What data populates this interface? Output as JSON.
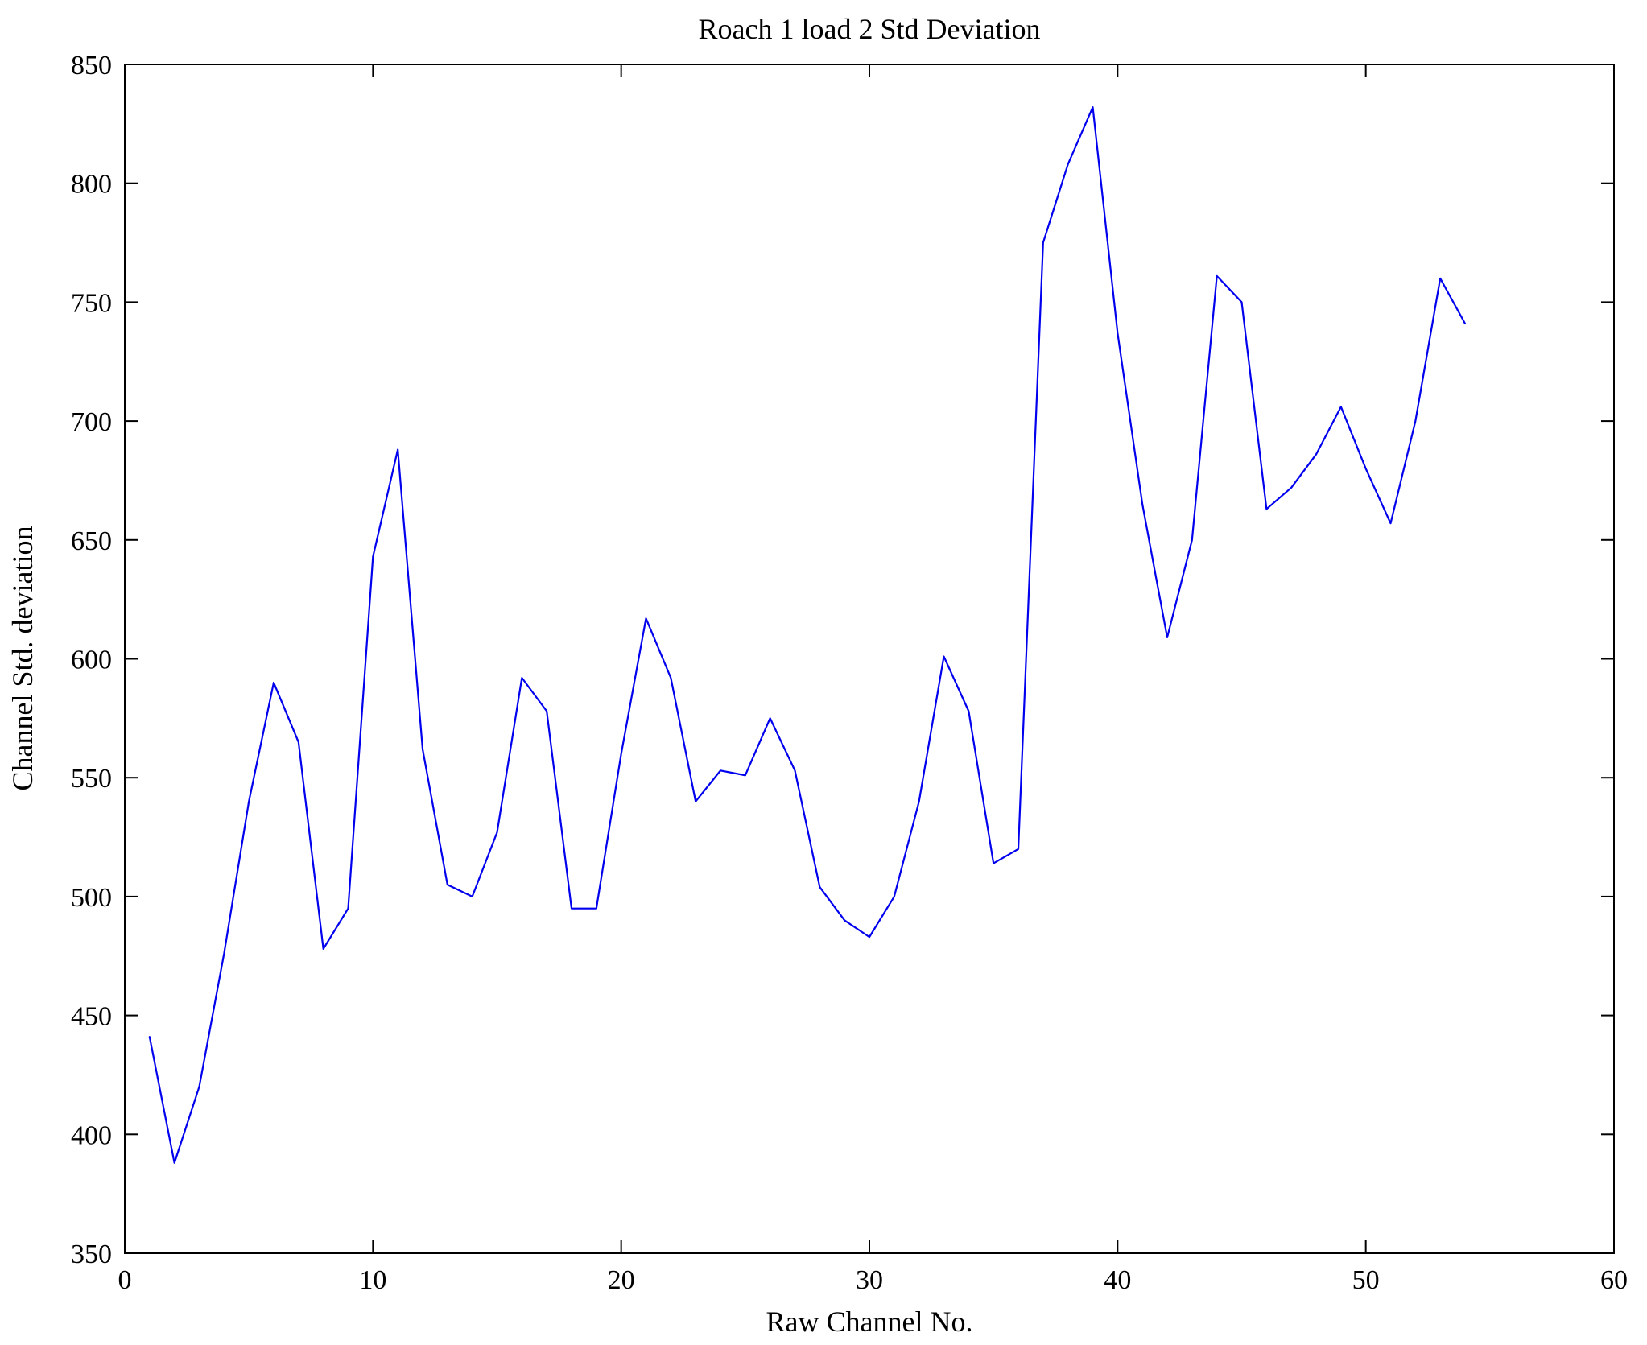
{
  "chart_data": {
    "type": "line",
    "title": "Roach 1 load 2 Std Deviation",
    "xlabel": "Raw Channel No.",
    "ylabel": "Channel Std. deviation",
    "xlim": [
      0,
      60
    ],
    "ylim": [
      350,
      850
    ],
    "x_ticks": [
      0,
      10,
      20,
      30,
      40,
      50,
      60
    ],
    "y_ticks": [
      350,
      400,
      450,
      500,
      550,
      600,
      650,
      700,
      750,
      800,
      850
    ],
    "grid": false,
    "legend": "none",
    "line_color": "#0000ee",
    "axis_color": "#000000",
    "x": [
      1,
      2,
      3,
      4,
      5,
      6,
      7,
      8,
      9,
      10,
      11,
      12,
      13,
      14,
      15,
      16,
      17,
      18,
      19,
      20,
      21,
      22,
      23,
      24,
      25,
      26,
      27,
      28,
      29,
      30,
      31,
      32,
      33,
      34,
      35,
      36,
      37,
      38,
      39,
      40,
      41,
      42,
      43,
      44,
      45,
      46,
      47,
      48,
      49,
      50,
      51,
      52,
      53,
      54
    ],
    "y": [
      441,
      388,
      420,
      476,
      540,
      590,
      565,
      478,
      495,
      643,
      688,
      562,
      505,
      500,
      527,
      592,
      578,
      495,
      495,
      560,
      617,
      592,
      540,
      553,
      551,
      575,
      553,
      504,
      490,
      483,
      500,
      540,
      601,
      578,
      514,
      520,
      775,
      808,
      832,
      737,
      665,
      609,
      650,
      761,
      750,
      663,
      672,
      686,
      706,
      680,
      657,
      700,
      760,
      741
    ]
  }
}
